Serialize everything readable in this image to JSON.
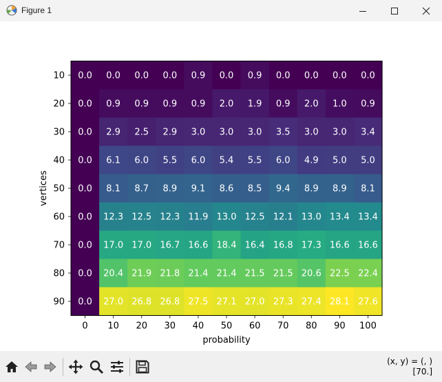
{
  "window": {
    "title": "Figure 1",
    "icons": {
      "app": "matplotlib-icon",
      "minimize": "minimize-icon",
      "maximize": "maximize-icon",
      "close": "close-icon"
    }
  },
  "toolbar": {
    "buttons": [
      "home-icon",
      "back-arrow-icon",
      "forward-arrow-icon",
      "pan-move-icon",
      "zoom-magnifier-icon",
      "configure-subplots-icon",
      "save-floppy-icon"
    ],
    "coords_line1": "(x, y) = (, )",
    "coords_line2": "[70.]"
  },
  "chart_data": {
    "type": "heatmap",
    "title": "",
    "xlabel": "probability",
    "ylabel": "vertices",
    "x_ticks": [
      "0",
      "10",
      "20",
      "30",
      "40",
      "50",
      "60",
      "70",
      "80",
      "90",
      "100"
    ],
    "y_ticks": [
      "10",
      "20",
      "30",
      "40",
      "50",
      "60",
      "70",
      "80",
      "90"
    ],
    "colormap": "viridis",
    "vmin": 0.0,
    "vmax": 28.1,
    "annotations_color": "white",
    "values": [
      [
        0.0,
        0.0,
        0.0,
        0.0,
        0.9,
        0.0,
        0.9,
        0.0,
        0.0,
        0.0,
        0.0
      ],
      [
        0.0,
        0.9,
        0.9,
        0.9,
        0.9,
        2.0,
        1.9,
        0.9,
        2.0,
        1.0,
        0.9
      ],
      [
        0.0,
        2.9,
        2.5,
        2.9,
        3.0,
        3.0,
        3.0,
        3.5,
        3.0,
        3.0,
        3.4
      ],
      [
        0.0,
        6.1,
        6.0,
        5.5,
        6.0,
        5.4,
        5.5,
        6.0,
        4.9,
        5.0,
        5.0
      ],
      [
        0.0,
        8.1,
        8.7,
        8.9,
        9.1,
        8.6,
        8.5,
        9.4,
        8.9,
        8.9,
        8.1
      ],
      [
        0.0,
        12.3,
        12.5,
        12.3,
        11.9,
        13.0,
        12.5,
        12.1,
        13.0,
        13.4,
        13.4
      ],
      [
        0.0,
        17.0,
        17.0,
        16.7,
        16.6,
        18.4,
        16.4,
        16.8,
        17.3,
        16.6,
        16.6
      ],
      [
        0.0,
        20.4,
        21.9,
        21.8,
        21.4,
        21.4,
        21.5,
        21.5,
        20.6,
        22.5,
        22.4
      ],
      [
        0.0,
        27.0,
        26.8,
        26.8,
        27.5,
        27.1,
        27.0,
        27.3,
        27.4,
        28.1,
        27.6
      ]
    ]
  }
}
